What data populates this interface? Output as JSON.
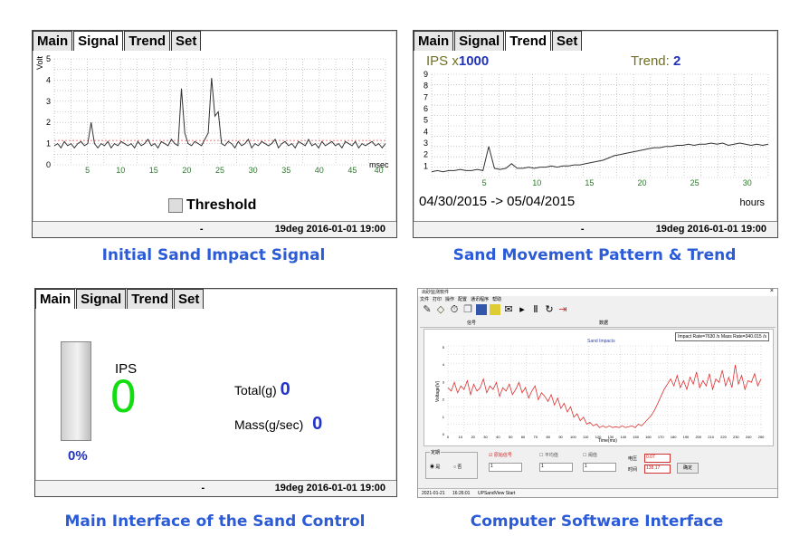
{
  "tabs": [
    "Main",
    "Signal",
    "Trend",
    "Set"
  ],
  "status": {
    "dash": "-",
    "text": "19deg  2016-01-01 19:00"
  },
  "captions": {
    "signal": "Initial Sand Impact Signal",
    "trend": "Sand Movement Pattern & Trend",
    "main": "Main Interface of the Sand Control",
    "software": "Computer Software Interface"
  },
  "signal_panel": {
    "ylabel": "Volt",
    "xunit": "msec",
    "threshold_label": "Threshold",
    "y_ticks": [
      "0",
      "1",
      "2",
      "3",
      "4",
      "5"
    ],
    "x_ticks": [
      "5",
      "10",
      "15",
      "20",
      "25",
      "30",
      "35",
      "40",
      "45",
      "40"
    ],
    "chart_data": {
      "type": "line",
      "xlabel": "msec",
      "ylabel": "Volt",
      "ylim": [
        0,
        5
      ],
      "xlim": [
        0,
        50
      ],
      "series": [
        {
          "values": [
            0.9,
            1.0,
            0.8,
            1.1,
            0.9,
            1.0,
            0.8,
            1.0,
            1.1,
            0.9,
            1.0,
            2.0,
            1.0,
            0.8,
            1.0,
            0.9,
            1.1,
            0.8,
            1.0,
            0.9,
            1.1,
            1.0,
            0.9,
            1.0,
            0.8,
            1.1,
            0.9,
            1.0,
            1.2,
            0.9,
            1.0,
            0.8,
            1.1,
            1.0,
            0.9,
            1.2,
            1.0,
            0.9,
            3.6,
            1.5,
            1.0,
            0.9,
            1.1,
            1.0,
            0.9,
            1.2,
            1.5,
            4.1,
            2.3,
            2.5,
            1.0,
            0.9,
            1.1,
            1.0,
            0.8,
            1.1,
            0.9,
            1.0,
            1.2,
            0.8,
            1.0,
            0.9,
            1.1,
            1.0,
            0.9,
            1.0,
            1.2,
            0.8,
            1.0,
            1.1,
            0.9,
            1.0,
            0.8,
            1.1,
            1.0,
            0.9,
            1.2,
            0.9,
            1.0,
            0.8,
            1.1,
            0.9,
            1.0,
            1.1,
            0.9,
            1.0,
            0.8,
            1.1,
            1.0,
            0.9,
            1.1,
            0.8,
            1.0,
            0.9,
            1.0,
            1.1,
            0.9,
            1.0,
            0.8,
            1.0
          ]
        }
      ]
    }
  },
  "trend_panel": {
    "ips_label": "IPS x",
    "ips_mult": "1000",
    "trend_label": "Trend: ",
    "trend_value": "2",
    "y_ticks": [
      "1",
      "2",
      "3",
      "4",
      "5",
      "6",
      "7",
      "8",
      "9"
    ],
    "x_ticks": [
      "5",
      "10",
      "15",
      "20",
      "25",
      "30"
    ],
    "date_range": "04/30/2015 -> 05/04/2015",
    "xunit": "hours",
    "chart_data": {
      "type": "line",
      "xunit": "hours",
      "ylim": [
        0,
        9
      ],
      "xlim": [
        0,
        32
      ],
      "series": [
        {
          "values": [
            0.5,
            0.6,
            0.5,
            0.6,
            0.6,
            0.7,
            0.6,
            0.6,
            0.7,
            0.6,
            2.7,
            0.8,
            0.7,
            0.8,
            1.2,
            0.8,
            0.8,
            0.9,
            0.8,
            0.9,
            0.9,
            1.0,
            0.9,
            1.0,
            1.0,
            1.1,
            1.1,
            1.2,
            1.3,
            1.4,
            1.5,
            1.7,
            1.9,
            2.0,
            2.1,
            2.2,
            2.3,
            2.4,
            2.5,
            2.6,
            2.6,
            2.7,
            2.7,
            2.8,
            2.8,
            2.9,
            2.8,
            2.9,
            2.9,
            3.0,
            2.9,
            3.0,
            2.8,
            2.9,
            3.0,
            2.9,
            2.8,
            2.9,
            2.8,
            2.9
          ]
        }
      ]
    }
  },
  "main_panel": {
    "percent": "0%",
    "ips_label": "IPS",
    "ips_value": "0",
    "total_label": "Total(g)",
    "total_value": "0",
    "mass_label": "Mass(g/sec)",
    "mass_value": "0"
  },
  "software": {
    "window_title": "出砂监测软件",
    "menu": [
      "文件",
      "打印",
      "操作",
      "配置",
      "通讯程序",
      "帮助"
    ],
    "col1": "信号",
    "col2": "数据",
    "rate_label": "Impact Rate=7630 /s  Mass Rate=340.015 /s",
    "chart_title": "Sand Impacts",
    "ylabel": "Voltage(V)",
    "xlabel": "Time(ms)",
    "y_ticks": [
      "0",
      "1",
      "2",
      "3",
      "4",
      "5"
    ],
    "x_ticks": [
      "0",
      "10",
      "20",
      "30",
      "40",
      "50",
      "60",
      "70",
      "80",
      "90",
      "100",
      "110",
      "120",
      "130",
      "140",
      "150",
      "160",
      "170",
      "180",
      "190",
      "200",
      "210",
      "220",
      "230",
      "240",
      "250"
    ],
    "group_title": "定期",
    "radio_yes": "是",
    "radio_no": "否",
    "chk_raw": "原始信号",
    "chk_avg": "平均值",
    "chk_thr": "阈值",
    "voltage_label": "电压",
    "voltage_value": "0.07",
    "time_label": "时间",
    "time_value": "138.17",
    "confirm": "确定",
    "spin_value": "1",
    "footer_date": "2021-01-21",
    "footer_time": "16:26:01",
    "footer_msg": "UPSandView Start",
    "chart_data": {
      "type": "line",
      "xlabel": "Time(ms)",
      "ylabel": "Voltage(V)",
      "ylim": [
        0,
        5
      ],
      "xlim": [
        0,
        250
      ],
      "series": [
        {
          "values": [
            2.6,
            2.4,
            2.9,
            2.3,
            2.7,
            2.5,
            3.0,
            2.2,
            2.8,
            2.4,
            2.6,
            3.1,
            2.3,
            2.7,
            2.5,
            2.9,
            2.1,
            2.6,
            2.4,
            2.8,
            2.2,
            2.5,
            2.9,
            2.3,
            2.6,
            2.0,
            2.4,
            2.7,
            1.9,
            2.3,
            2.1,
            1.8,
            2.2,
            1.6,
            2.0,
            1.4,
            1.7,
            1.2,
            1.5,
            0.9,
            1.1,
            0.7,
            0.9,
            0.5,
            0.6,
            0.4,
            0.5,
            0.3,
            0.4,
            0.3,
            0.4,
            0.3,
            0.35,
            0.3,
            0.4,
            0.3,
            0.35,
            0.4,
            0.3,
            0.5,
            0.4,
            0.6,
            0.8,
            1.0,
            1.3,
            1.7,
            2.1,
            2.5,
            2.8,
            3.1,
            2.7,
            3.3,
            2.6,
            3.0,
            2.5,
            3.2,
            2.8,
            3.5,
            2.6,
            3.0,
            2.7,
            3.4,
            2.5,
            3.1,
            2.9,
            3.6,
            2.7,
            3.2,
            2.6,
            3.9,
            2.8,
            3.3,
            2.5,
            3.0,
            2.9,
            3.4,
            2.7,
            3.1
          ]
        }
      ]
    }
  }
}
